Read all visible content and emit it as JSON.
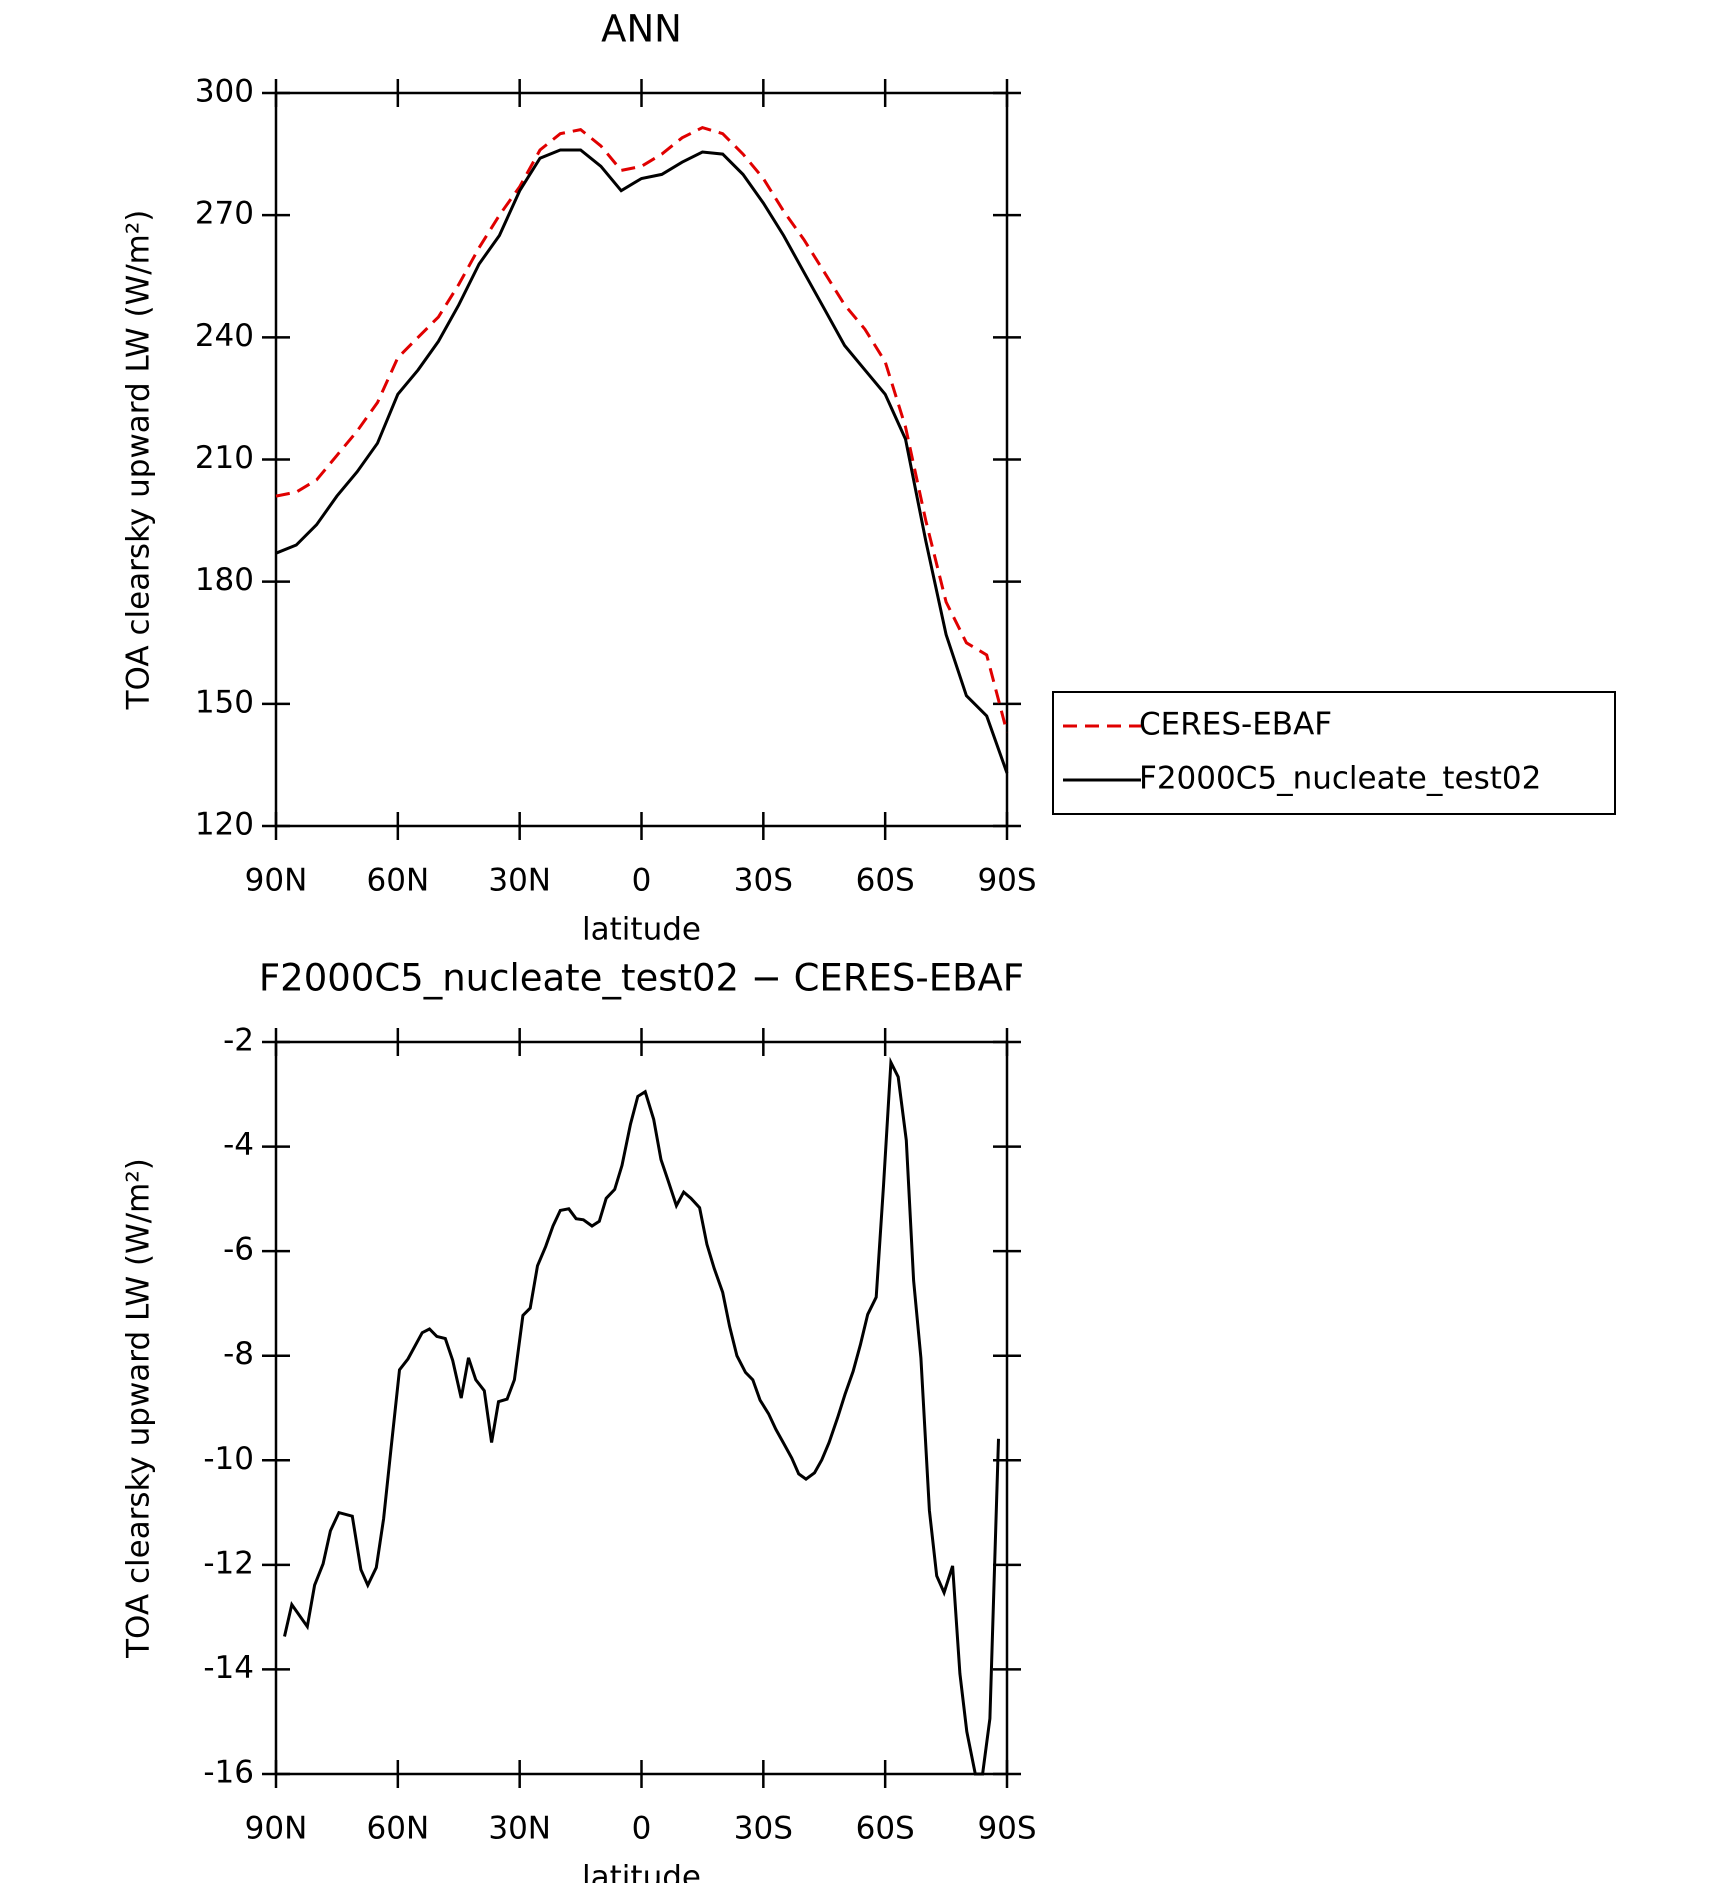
{
  "chart_data": [
    {
      "type": "line",
      "title": "ANN",
      "x": [
        90,
        85,
        80,
        75,
        70,
        65,
        60,
        55,
        50,
        45,
        40,
        35,
        30,
        25,
        20,
        15,
        10,
        5,
        0,
        -5,
        -10,
        -15,
        -20,
        -25,
        -30,
        -35,
        -40,
        -45,
        -50,
        -55,
        -60,
        -65,
        -70,
        -75,
        -80,
        -85,
        -90
      ],
      "series": [
        {
          "name": "CERES-EBAF",
          "color": "#e00000",
          "dash": "dashed",
          "values": [
            201,
            202,
            205,
            211,
            217,
            224,
            235,
            240,
            245,
            253,
            262,
            270,
            277,
            286,
            290,
            291,
            287,
            281,
            282,
            285,
            289,
            291.5,
            290,
            285,
            279,
            271,
            264,
            256,
            248,
            242,
            234,
            218,
            195,
            175,
            165,
            162,
            143
          ]
        },
        {
          "name": "F2000C5_nucleate_test02",
          "color": "#000000",
          "dash": "solid",
          "values": [
            187,
            189,
            194,
            201,
            207,
            214,
            226,
            232,
            239,
            248,
            258,
            265,
            276,
            284,
            286,
            286,
            282,
            276,
            279,
            280,
            283,
            285.5,
            285,
            280,
            273,
            265,
            256,
            247,
            238,
            232,
            226,
            215,
            190,
            167,
            152,
            147,
            133
          ]
        }
      ],
      "xlabel": "latitude",
      "ylabel": "TOA clearsky upward LW (W/m²)",
      "xlim": [
        90,
        -90
      ],
      "ylim": [
        120,
        300
      ],
      "xticks": [
        {
          "value": 90,
          "label": "90N"
        },
        {
          "value": 60,
          "label": "60N"
        },
        {
          "value": 30,
          "label": "30N"
        },
        0,
        {
          "value": -30,
          "label": "30S"
        },
        {
          "value": -60,
          "label": "60S"
        },
        {
          "value": -90,
          "label": "90S"
        }
      ],
      "yticks": [
        120,
        150,
        180,
        210,
        240,
        270,
        300
      ],
      "legend": "right"
    },
    {
      "type": "line",
      "title": "F2000C5_nucleate_test02 − CERES-EBAF",
      "x": [
        87.9,
        86.1,
        82.3,
        80.5,
        78.4,
        76.6,
        74.5,
        71.2,
        69.1,
        67.4,
        65.3,
        63.5,
        61.7,
        59.6,
        57.5,
        54.0,
        52.2,
        50.4,
        48.3,
        46.5,
        44.4,
        42.6,
        40.8,
        38.7,
        36.9,
        35.2,
        33.1,
        31.3,
        29.2,
        27.4,
        25.6,
        23.6,
        21.8,
        20.0,
        17.9,
        16.1,
        14.3,
        12.2,
        10.4,
        8.7,
        6.6,
        4.8,
        2.7,
        0.9,
        -0.9,
        -3.0,
        -4.8,
        -6.5,
        -8.6,
        -10.4,
        -12.2,
        -14.3,
        -16.1,
        -17.9,
        -20.0,
        -21.7,
        -23.5,
        -25.6,
        -27.4,
        -29.2,
        -31.3,
        -33.1,
        -34.9,
        -37.0,
        -38.7,
        -40.5,
        -42.6,
        -44.4,
        -46.2,
        -48.3,
        -50.1,
        -52.1,
        -53.9,
        -55.7,
        -57.8,
        -59.6,
        -61.4,
        -63.2,
        -65.2,
        -67.0,
        -68.8,
        -70.9,
        -72.7,
        -74.5,
        -76.6,
        -78.4,
        -80.1,
        -82.2,
        -84.0,
        -85.8,
        -87.9
      ],
      "values": [
        -13.37,
        -12.76,
        -13.18,
        -12.39,
        -11.98,
        -11.35,
        -11.0,
        -11.07,
        -12.09,
        -12.39,
        -12.05,
        -11.12,
        -9.8,
        -8.27,
        -8.06,
        -7.56,
        -7.49,
        -7.63,
        -7.67,
        -8.09,
        -8.81,
        -8.04,
        -8.46,
        -8.67,
        -9.66,
        -8.88,
        -8.83,
        -8.46,
        -7.23,
        -7.09,
        -6.28,
        -5.91,
        -5.52,
        -5.22,
        -5.19,
        -5.38,
        -5.4,
        -5.52,
        -5.43,
        -4.99,
        -4.82,
        -4.36,
        -3.57,
        -3.04,
        -2.95,
        -3.48,
        -4.25,
        -4.64,
        -5.13,
        -4.87,
        -4.99,
        -5.17,
        -5.87,
        -6.33,
        -6.79,
        -7.44,
        -8.0,
        -8.32,
        -8.46,
        -8.85,
        -9.11,
        -9.41,
        -9.66,
        -9.96,
        -10.26,
        -10.36,
        -10.24,
        -9.99,
        -9.66,
        -9.18,
        -8.74,
        -8.3,
        -7.79,
        -7.21,
        -6.88,
        -4.75,
        -2.39,
        -2.67,
        -3.88,
        -6.56,
        -8.04,
        -10.96,
        -12.21,
        -12.53,
        -12.02,
        -14.08,
        -15.19,
        -16,
        -16,
        -14.94,
        -9.59
      ],
      "color": "#000000",
      "xlabel": "latitude",
      "ylabel": "TOA clearsky upward LW (W/m²)",
      "xlim": [
        90,
        -90
      ],
      "ylim": [
        -16,
        -2
      ],
      "xticks": [
        {
          "value": 90,
          "label": "90N"
        },
        {
          "value": 60,
          "label": "60N"
        },
        {
          "value": 30,
          "label": "30N"
        },
        0,
        {
          "value": -30,
          "label": "30S"
        },
        {
          "value": -60,
          "label": "60S"
        },
        {
          "value": -90,
          "label": "90S"
        }
      ],
      "yticks": [
        -16,
        -14,
        -12,
        -10,
        -8,
        -6,
        -4,
        -2
      ]
    }
  ]
}
